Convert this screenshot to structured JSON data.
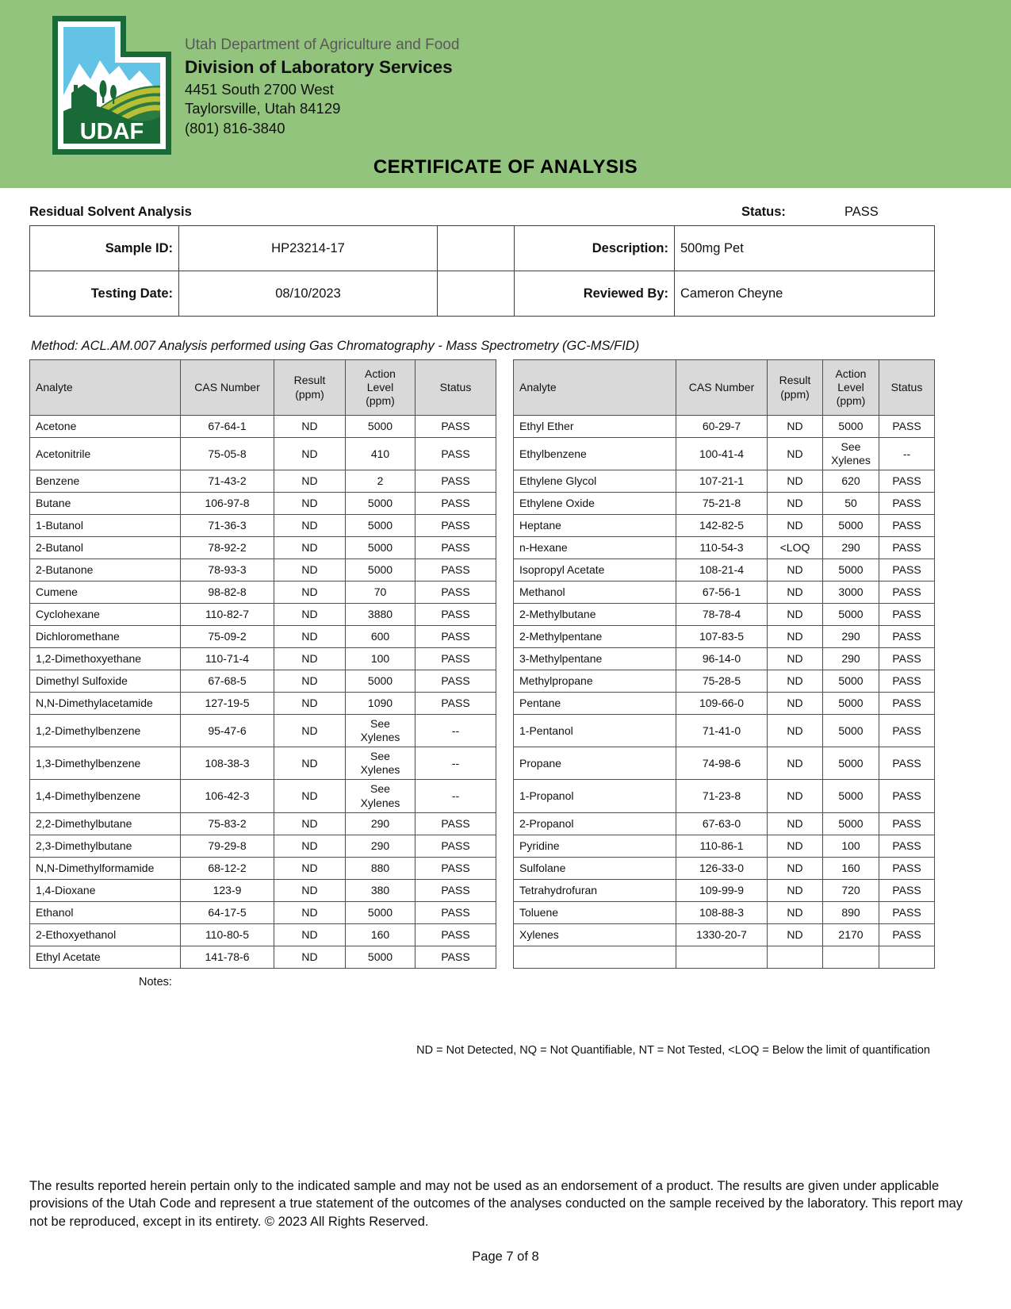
{
  "header": {
    "agency": "Utah Department of Agriculture and Food",
    "division": "Division of Laboratory Services",
    "address1": "4451 South 2700 West",
    "address2": "Taylorsville, Utah 84129",
    "phone": "(801) 816-3840",
    "logo_text": "UDAF",
    "certificate_title": "CERTIFICATE OF ANALYSIS",
    "band_color": "#93c47d",
    "logo_green": "#1a6a38",
    "logo_sky": "#62c3e6",
    "logo_field_yellow": "#b9bf35"
  },
  "report": {
    "section_title": "Residual Solvent Analysis",
    "status_label": "Status:",
    "status_value": "PASS",
    "sample_id_label": "Sample ID:",
    "sample_id": "HP23214-17",
    "description_label": "Description:",
    "description": "500mg Pet",
    "testing_date_label": "Testing Date:",
    "testing_date": "08/10/2023",
    "reviewed_by_label": "Reviewed By:",
    "reviewed_by": "Cameron Cheyne",
    "method": "Method: ACL.AM.007 Analysis performed using Gas Chromatography - Mass Spectrometry (GC-MS/FID)"
  },
  "table": {
    "headers": [
      "Analyte",
      "CAS Number",
      "Result\n(ppm)",
      "Action\nLevel\n(ppm)",
      "Status"
    ],
    "left_rows": [
      {
        "analyte": "Acetone",
        "cas": "67-64-1",
        "result": "ND",
        "action": "5000",
        "status": "PASS"
      },
      {
        "analyte": "Acetonitrile",
        "cas": "75-05-8",
        "result": "ND",
        "action": "410",
        "status": "PASS"
      },
      {
        "analyte": "Benzene",
        "cas": "71-43-2",
        "result": "ND",
        "action": "2",
        "status": "PASS"
      },
      {
        "analyte": "Butane",
        "cas": "106-97-8",
        "result": "ND",
        "action": "5000",
        "status": "PASS"
      },
      {
        "analyte": "1-Butanol",
        "cas": "71-36-3",
        "result": "ND",
        "action": "5000",
        "status": "PASS"
      },
      {
        "analyte": "2-Butanol",
        "cas": "78-92-2",
        "result": "ND",
        "action": "5000",
        "status": "PASS"
      },
      {
        "analyte": "2-Butanone",
        "cas": "78-93-3",
        "result": "ND",
        "action": "5000",
        "status": "PASS"
      },
      {
        "analyte": "Cumene",
        "cas": "98-82-8",
        "result": "ND",
        "action": "70",
        "status": "PASS"
      },
      {
        "analyte": "Cyclohexane",
        "cas": "110-82-7",
        "result": "ND",
        "action": "3880",
        "status": "PASS"
      },
      {
        "analyte": "Dichloromethane",
        "cas": "75-09-2",
        "result": "ND",
        "action": "600",
        "status": "PASS"
      },
      {
        "analyte": "1,2-Dimethoxyethane",
        "cas": "110-71-4",
        "result": "ND",
        "action": "100",
        "status": "PASS"
      },
      {
        "analyte": "Dimethyl Sulfoxide",
        "cas": "67-68-5",
        "result": "ND",
        "action": "5000",
        "status": "PASS"
      },
      {
        "analyte": "N,N-Dimethylacetamide",
        "cas": "127-19-5",
        "result": "ND",
        "action": "1090",
        "status": "PASS"
      },
      {
        "analyte": "1,2-Dimethylbenzene",
        "cas": "95-47-6",
        "result": "ND",
        "action": "See\nXylenes",
        "status": "--"
      },
      {
        "analyte": "1,3-Dimethylbenzene",
        "cas": "108-38-3",
        "result": "ND",
        "action": "See\nXylenes",
        "status": "--"
      },
      {
        "analyte": "1,4-Dimethylbenzene",
        "cas": "106-42-3",
        "result": "ND",
        "action": "See\nXylenes",
        "status": "--"
      },
      {
        "analyte": "2,2-Dimethylbutane",
        "cas": "75-83-2",
        "result": "ND",
        "action": "290",
        "status": "PASS"
      },
      {
        "analyte": "2,3-Dimethylbutane",
        "cas": "79-29-8",
        "result": "ND",
        "action": "290",
        "status": "PASS"
      },
      {
        "analyte": "N,N-Dimethylformamide",
        "cas": "68-12-2",
        "result": "ND",
        "action": "880",
        "status": "PASS"
      },
      {
        "analyte": "1,4-Dioxane",
        "cas": "123-9",
        "result": "ND",
        "action": "380",
        "status": "PASS"
      },
      {
        "analyte": "Ethanol",
        "cas": "64-17-5",
        "result": "ND",
        "action": "5000",
        "status": "PASS"
      },
      {
        "analyte": "2-Ethoxyethanol",
        "cas": "110-80-5",
        "result": "ND",
        "action": "160",
        "status": "PASS"
      },
      {
        "analyte": "Ethyl Acetate",
        "cas": "141-78-6",
        "result": "ND",
        "action": "5000",
        "status": "PASS"
      }
    ],
    "right_rows": [
      {
        "analyte": "Ethyl Ether",
        "cas": "60-29-7",
        "result": "ND",
        "action": "5000",
        "status": "PASS"
      },
      {
        "analyte": "Ethylbenzene",
        "cas": "100-41-4",
        "result": "ND",
        "action": "See\nXylenes",
        "status": "--"
      },
      {
        "analyte": "Ethylene Glycol",
        "cas": "107-21-1",
        "result": "ND",
        "action": "620",
        "status": "PASS"
      },
      {
        "analyte": "Ethylene Oxide",
        "cas": "75-21-8",
        "result": "ND",
        "action": "50",
        "status": "PASS"
      },
      {
        "analyte": "Heptane",
        "cas": "142-82-5",
        "result": "ND",
        "action": "5000",
        "status": "PASS"
      },
      {
        "analyte": "n-Hexane",
        "cas": "110-54-3",
        "result": "<LOQ",
        "action": "290",
        "status": "PASS"
      },
      {
        "analyte": "Isopropyl Acetate",
        "cas": "108-21-4",
        "result": "ND",
        "action": "5000",
        "status": "PASS"
      },
      {
        "analyte": "Methanol",
        "cas": "67-56-1",
        "result": "ND",
        "action": "3000",
        "status": "PASS"
      },
      {
        "analyte": "2-Methylbutane",
        "cas": "78-78-4",
        "result": "ND",
        "action": "5000",
        "status": "PASS"
      },
      {
        "analyte": "2-Methylpentane",
        "cas": "107-83-5",
        "result": "ND",
        "action": "290",
        "status": "PASS"
      },
      {
        "analyte": "3-Methylpentane",
        "cas": "96-14-0",
        "result": "ND",
        "action": "290",
        "status": "PASS"
      },
      {
        "analyte": "Methylpropane",
        "cas": "75-28-5",
        "result": "ND",
        "action": "5000",
        "status": "PASS"
      },
      {
        "analyte": "Pentane",
        "cas": "109-66-0",
        "result": "ND",
        "action": "5000",
        "status": "PASS"
      },
      {
        "analyte": "1-Pentanol",
        "cas": "71-41-0",
        "result": "ND",
        "action": "5000",
        "status": "PASS"
      },
      {
        "analyte": "Propane",
        "cas": "74-98-6",
        "result": "ND",
        "action": "5000",
        "status": "PASS"
      },
      {
        "analyte": "1-Propanol",
        "cas": "71-23-8",
        "result": "ND",
        "action": "5000",
        "status": "PASS"
      },
      {
        "analyte": "2-Propanol",
        "cas": "67-63-0",
        "result": "ND",
        "action": "5000",
        "status": "PASS"
      },
      {
        "analyte": "Pyridine",
        "cas": "110-86-1",
        "result": "ND",
        "action": "100",
        "status": "PASS"
      },
      {
        "analyte": "Sulfolane",
        "cas": "126-33-0",
        "result": "ND",
        "action": "160",
        "status": "PASS"
      },
      {
        "analyte": "Tetrahydrofuran",
        "cas": "109-99-9",
        "result": "ND",
        "action": "720",
        "status": "PASS"
      },
      {
        "analyte": "Toluene",
        "cas": "108-88-3",
        "result": "ND",
        "action": "890",
        "status": "PASS"
      },
      {
        "analyte": "Xylenes",
        "cas": "1330-20-7",
        "result": "ND",
        "action": "2170",
        "status": "PASS"
      },
      {
        "analyte": "",
        "cas": "",
        "result": "",
        "action": "",
        "status": ""
      }
    ]
  },
  "notes_label": "Notes:",
  "legend": "ND = Not Detected, NQ = Not Quantifiable, NT = Not Tested, <LOQ = Below the limit of quantification",
  "disclaimer": "The results reported herein pertain only to the indicated sample and may not be used as an endorsement of a product. The results are given under applicable provisions of the Utah Code and represent a true statement of the outcomes of the analyses conducted on the sample received by the laboratory. This report may not be reproduced, except in its entirety. © 2023 All Rights Reserved.",
  "page_footer": "Page 7 of 8"
}
